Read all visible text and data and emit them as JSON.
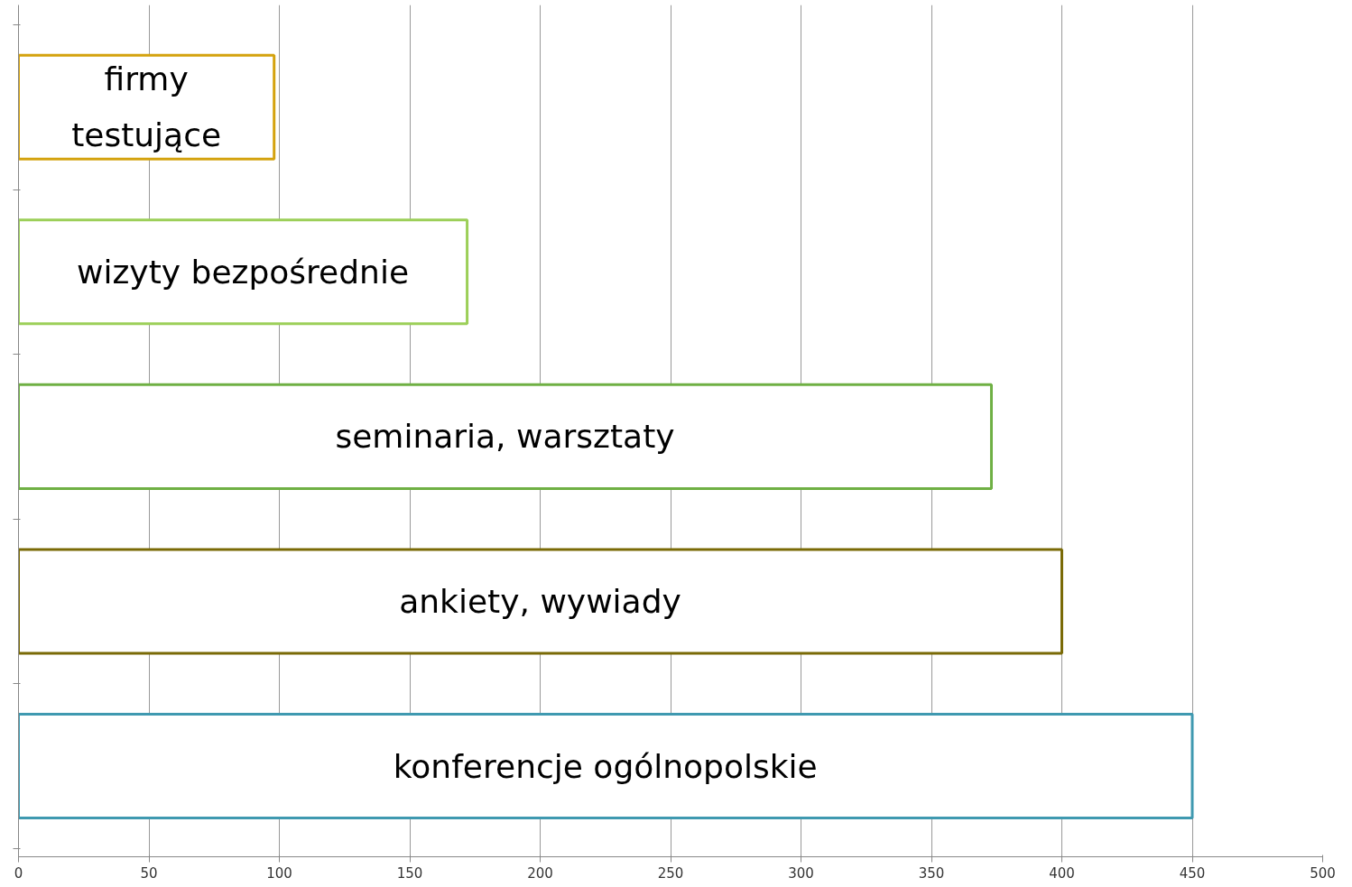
{
  "chart_data": {
    "type": "bar",
    "orientation": "horizontal",
    "categories": [
      "firmy testujące",
      "wizyty bezpośrednie",
      "seminaria, warsztaty",
      "ankiety, wywiady",
      "konferencje ogólnopolskie"
    ],
    "values": [
      98,
      172,
      373,
      400,
      450
    ],
    "colors": [
      "#d4a20e",
      "#9ccf58",
      "#6fb044",
      "#7a6a06",
      "#3f99b0"
    ],
    "xlim": [
      0,
      500
    ],
    "xticks": [
      0,
      50,
      100,
      150,
      200,
      250,
      300,
      350,
      400,
      450,
      500
    ],
    "grid": "x",
    "tick_labels": "x"
  }
}
